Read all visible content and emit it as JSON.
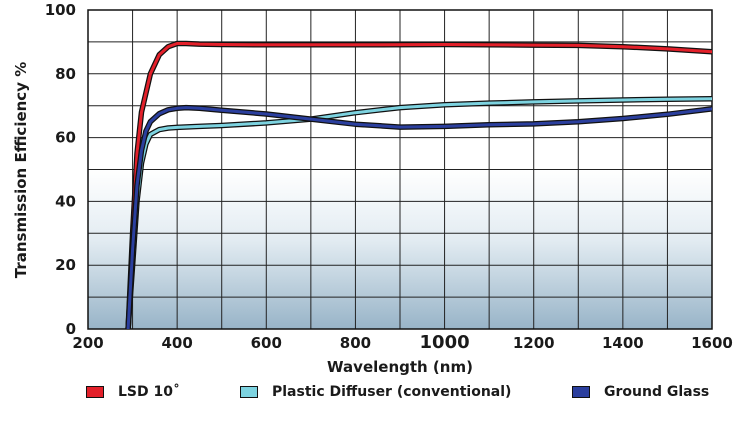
{
  "chart_data": {
    "type": "line",
    "title": "",
    "xlabel": "Wavelength (nm)",
    "ylabel": "Transmission Efficiency %",
    "xlim": [
      200,
      1600
    ],
    "ylim": [
      0,
      100
    ],
    "grid": true,
    "legend_position": "bottom",
    "x_ticks": [
      {
        "value": 200,
        "label": "200"
      },
      {
        "value": 400,
        "label": "400"
      },
      {
        "value": 600,
        "label": "600"
      },
      {
        "value": 800,
        "label": "800"
      },
      {
        "value": 1000,
        "label": "1000"
      },
      {
        "value": 1200,
        "label": "1200"
      },
      {
        "value": 1400,
        "label": "1400"
      },
      {
        "value": 1600,
        "label": "1600"
      }
    ],
    "y_ticks": [
      {
        "value": 0,
        "label": "0"
      },
      {
        "value": 20,
        "label": "20"
      },
      {
        "value": 40,
        "label": "40"
      },
      {
        "value": 60,
        "label": "60"
      },
      {
        "value": 80,
        "label": "80"
      },
      {
        "value": 100,
        "label": "100"
      }
    ],
    "series": [
      {
        "name": "LSD 10˚",
        "color": "#e3202a",
        "x": [
          290,
          300,
          310,
          320,
          340,
          360,
          380,
          400,
          420,
          450,
          500,
          600,
          800,
          1000,
          1200,
          1300,
          1400,
          1500,
          1600
        ],
        "y": [
          0,
          30,
          55,
          68,
          80,
          86,
          88.5,
          89.5,
          89.5,
          89.3,
          89.2,
          89.1,
          89.1,
          89.2,
          89.0,
          88.9,
          88.5,
          87.8,
          86.9
        ]
      },
      {
        "name": "Plastic Diffuser (conventional)",
        "color": "#7dd3e0",
        "x": [
          290,
          300,
          310,
          320,
          330,
          340,
          360,
          380,
          400,
          450,
          500,
          600,
          700,
          800,
          900,
          1000,
          1100,
          1200,
          1300,
          1400,
          1500,
          1600
        ],
        "y": [
          0,
          20,
          40,
          52,
          58,
          61,
          62.5,
          63,
          63.2,
          63.5,
          63.8,
          64.6,
          65.8,
          67.8,
          69.4,
          70.3,
          70.8,
          71.2,
          71.5,
          71.8,
          72.0,
          72.2
        ]
      },
      {
        "name": "Ground Glass",
        "color": "#2b3f9e",
        "x": [
          290,
          300,
          310,
          320,
          330,
          340,
          360,
          380,
          400,
          420,
          450,
          500,
          600,
          700,
          800,
          900,
          1000,
          1100,
          1200,
          1300,
          1400,
          1500,
          1600
        ],
        "y": [
          0,
          25,
          45,
          56,
          62,
          65,
          67.5,
          68.7,
          69.2,
          69.4,
          69.2,
          68.6,
          67.4,
          65.8,
          64.2,
          63.3,
          63.5,
          64.0,
          64.3,
          65.0,
          66.0,
          67.3,
          69.0
        ]
      }
    ]
  },
  "legend": {
    "items": [
      {
        "label": "LSD 10˚",
        "color": "#e3202a"
      },
      {
        "label": "Plastic Diffuser (conventional)",
        "color": "#7dd3e0"
      },
      {
        "label": "Ground Glass",
        "color": "#2b3f9e"
      }
    ]
  }
}
